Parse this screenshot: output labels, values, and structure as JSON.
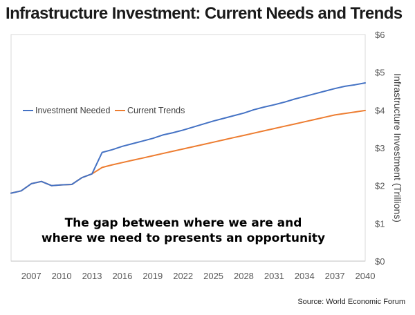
{
  "chart_data": {
    "type": "line",
    "title": "Infrastructure Investment: Current Needs and Trends",
    "ylabel": "Infrastructure Investment (Trillions)",
    "ylim": [
      0,
      6
    ],
    "y_ticks": [
      "$0",
      "$1",
      "$2",
      "$3",
      "$4",
      "$5",
      "$6"
    ],
    "xlim": [
      2005,
      2040
    ],
    "x_ticks": [
      "2007",
      "2010",
      "2013",
      "2016",
      "2019",
      "2022",
      "2025",
      "2028",
      "2031",
      "2034",
      "2037",
      "2040"
    ],
    "legend_position": "left-middle",
    "grid": false,
    "annotation": [
      "The gap between where we are and",
      "where we need to presents an opportunity"
    ],
    "source": "Source: World Economic Forum",
    "series": [
      {
        "name": "Investment Needed",
        "color": "#4472C4",
        "x": [
          2005,
          2006,
          2007,
          2008,
          2009,
          2010,
          2011,
          2012,
          2013,
          2014,
          2015,
          2016,
          2017,
          2018,
          2019,
          2020,
          2021,
          2022,
          2023,
          2024,
          2025,
          2026,
          2027,
          2028,
          2029,
          2030,
          2031,
          2032,
          2033,
          2034,
          2035,
          2036,
          2037,
          2038,
          2039,
          2040
        ],
        "values": [
          1.8,
          1.86,
          2.05,
          2.11,
          2.0,
          2.02,
          2.03,
          2.21,
          2.31,
          2.88,
          2.95,
          3.04,
          3.11,
          3.18,
          3.25,
          3.34,
          3.4,
          3.47,
          3.55,
          3.63,
          3.71,
          3.78,
          3.85,
          3.92,
          4.01,
          4.08,
          4.14,
          4.21,
          4.29,
          4.36,
          4.43,
          4.5,
          4.57,
          4.63,
          4.67,
          4.72
        ]
      },
      {
        "name": "Current Trends",
        "color": "#ED7D31",
        "x": [
          2005,
          2006,
          2007,
          2008,
          2009,
          2010,
          2011,
          2012,
          2013,
          2014,
          2015,
          2016,
          2017,
          2018,
          2019,
          2020,
          2021,
          2022,
          2023,
          2024,
          2025,
          2026,
          2027,
          2028,
          2029,
          2030,
          2031,
          2032,
          2033,
          2034,
          2035,
          2036,
          2037,
          2038,
          2039,
          2040
        ],
        "values": [
          1.8,
          1.86,
          2.05,
          2.11,
          2.0,
          2.02,
          2.03,
          2.21,
          2.31,
          2.48,
          2.55,
          2.61,
          2.67,
          2.73,
          2.79,
          2.85,
          2.91,
          2.97,
          3.03,
          3.09,
          3.15,
          3.21,
          3.27,
          3.33,
          3.39,
          3.45,
          3.51,
          3.57,
          3.63,
          3.69,
          3.75,
          3.81,
          3.87,
          3.91,
          3.95,
          3.99
        ]
      }
    ]
  }
}
